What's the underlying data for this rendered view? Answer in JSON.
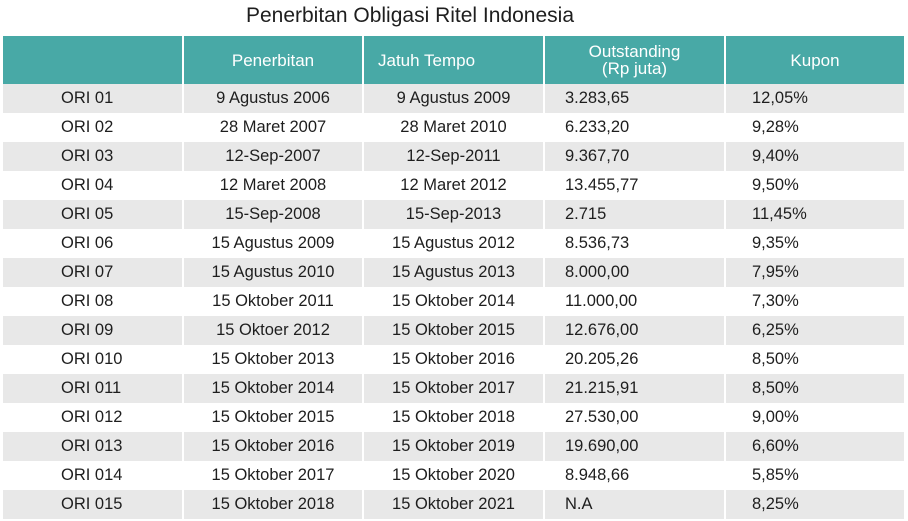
{
  "title": "Penerbitan Obligasi Ritel Indonesia",
  "columns": {
    "name": "",
    "issuance": "Penerbitan",
    "maturity": "Jatuh Tempo",
    "outstanding_line1": "Outstanding",
    "outstanding_line2": "(Rp juta)",
    "coupon": "Kupon"
  },
  "rows": [
    {
      "name": "ORI 01",
      "issuance": "9 Agustus 2006",
      "maturity": "9 Agustus 2009",
      "outstanding": "3.283,65",
      "coupon": "12,05%"
    },
    {
      "name": "ORI 02",
      "issuance": "28 Maret 2007",
      "maturity": "28 Maret 2010",
      "outstanding": "6.233,20",
      "coupon": "9,28%"
    },
    {
      "name": "ORI 03",
      "issuance": "12-Sep-2007",
      "maturity": "12-Sep-2011",
      "outstanding": "9.367,70",
      "coupon": "9,40%"
    },
    {
      "name": "ORI 04",
      "issuance": "12 Maret 2008",
      "maturity": "12 Maret 2012",
      "outstanding": "13.455,77",
      "coupon": "9,50%"
    },
    {
      "name": "ORI 05",
      "issuance": "15-Sep-2008",
      "maturity": "15-Sep-2013",
      "outstanding": "2.715",
      "coupon": "11,45%"
    },
    {
      "name": "ORI 06",
      "issuance": "15 Agustus 2009",
      "maturity": "15 Agustus 2012",
      "outstanding": "8.536,73",
      "coupon": "9,35%"
    },
    {
      "name": "ORI 07",
      "issuance": "15 Agustus 2010",
      "maturity": "15 Agustus 2013",
      "outstanding": "8.000,00",
      "coupon": "7,95%"
    },
    {
      "name": "ORI 08",
      "issuance": "15 Oktober 2011",
      "maturity": "15 Oktober 2014",
      "outstanding": "11.000,00",
      "coupon": "7,30%"
    },
    {
      "name": "ORI 09",
      "issuance": "15 Oktoer 2012",
      "maturity": "15 Oktober 2015",
      "outstanding": "12.676,00",
      "coupon": "6,25%"
    },
    {
      "name": "ORI 010",
      "issuance": "15 Oktober 2013",
      "maturity": "15 Oktober 2016",
      "outstanding": "20.205,26",
      "coupon": "8,50%"
    },
    {
      "name": "ORI 011",
      "issuance": "15 Oktober 2014",
      "maturity": "15 Oktober 2017",
      "outstanding": "21.215,91",
      "coupon": "8,50%"
    },
    {
      "name": "ORI 012",
      "issuance": "15 Oktober 2015",
      "maturity": "15 Oktober 2018",
      "outstanding": "27.530,00",
      "coupon": "9,00%"
    },
    {
      "name": "ORI 013",
      "issuance": "15 Oktober 2016",
      "maturity": "15 Oktober 2019",
      "outstanding": "19.690,00",
      "coupon": "6,60%"
    },
    {
      "name": "ORI 014",
      "issuance": "15 Oktober 2017",
      "maturity": "15 Oktober 2020",
      "outstanding": "8.948,66",
      "coupon": "5,85%"
    },
    {
      "name": "ORI 015",
      "issuance": "15 Oktober 2018",
      "maturity": "15 Oktober 2021",
      "outstanding": "N.A",
      "coupon": "8,25%"
    }
  ]
}
